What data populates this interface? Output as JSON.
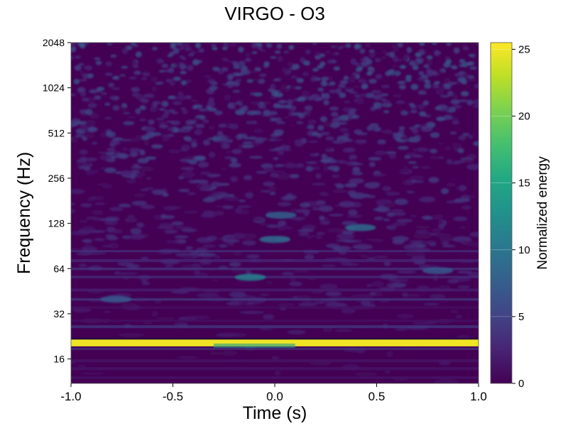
{
  "chart_data": {
    "type": "heatmap",
    "title": "VIRGO - O3",
    "xlabel": "Time (s)",
    "ylabel": "Frequency (Hz)",
    "xlim": [
      -1.0,
      1.0
    ],
    "ylim": [
      11,
      2048
    ],
    "y_scale": "log2",
    "x_ticks": [
      "-1.0",
      "-0.5",
      "0.0",
      "0.5",
      "1.0"
    ],
    "x_tick_values": [
      -1.0,
      -0.5,
      0.0,
      0.5,
      1.0
    ],
    "y_ticks": [
      "16",
      "32",
      "64",
      "128",
      "256",
      "512",
      "1024",
      "2048"
    ],
    "y_tick_values": [
      16,
      32,
      64,
      128,
      256,
      512,
      1024,
      2048
    ],
    "colorbar": {
      "label": "Normalized energy",
      "colormap": "viridis",
      "range": [
        0,
        25.5
      ],
      "ticks": [
        "0",
        "5",
        "10",
        "15",
        "20",
        "25"
      ],
      "tick_values": [
        0,
        5,
        10,
        15,
        20,
        25
      ]
    },
    "features": [
      {
        "name": "persistent line",
        "freq_hz": 20.5,
        "time_range": [
          -1.0,
          1.0
        ],
        "energy": 25
      },
      {
        "name": "blob",
        "time": -0.12,
        "freq_hz": 56,
        "energy": 11
      },
      {
        "name": "blob",
        "time": 0.0,
        "freq_hz": 100,
        "energy": 9
      },
      {
        "name": "blob",
        "time": 0.42,
        "freq_hz": 120,
        "energy": 9
      },
      {
        "name": "blob",
        "time": 0.03,
        "freq_hz": 145,
        "energy": 8
      },
      {
        "name": "blob",
        "time": -0.78,
        "freq_hz": 40,
        "energy": 7
      },
      {
        "name": "blob",
        "time": 0.8,
        "freq_hz": 62,
        "energy": 7
      }
    ]
  },
  "colors": {
    "viridis_low": "#440154",
    "viridis_mid": "#21918c",
    "viridis_high": "#fde725"
  }
}
